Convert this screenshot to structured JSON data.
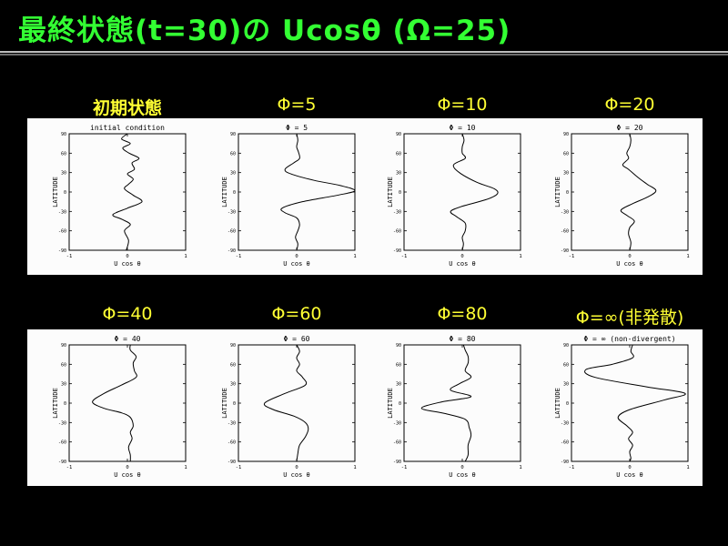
{
  "title": "最終状態(t=30)の Ucosθ (Ω=25)",
  "colors": {
    "background": "#000000",
    "title": "#33ff33",
    "panel_label": "#ffff33",
    "plot_bg": "#fcfcfc"
  },
  "panels": [
    {
      "label": "初期状態",
      "bold": true,
      "plot_title": "initial condition"
    },
    {
      "label": "Φ=5",
      "plot_title": "Φ = 5"
    },
    {
      "label": "Φ=10",
      "plot_title": "Φ = 10"
    },
    {
      "label": "Φ=20",
      "plot_title": "Φ = 20"
    },
    {
      "label": "Φ=40",
      "plot_title": "Φ = 40"
    },
    {
      "label": "Φ=60",
      "plot_title": "Φ = 60"
    },
    {
      "label": "Φ=80",
      "plot_title": "Φ = 80"
    },
    {
      "label": "Φ=∞(非発散)",
      "plot_title": "Φ = ∞ (non-divergent)"
    }
  ],
  "chart_data": [
    {
      "type": "line",
      "title": "initial condition",
      "xlabel": "U cos θ",
      "ylabel": "LATITUDE",
      "xlim": [
        -1,
        1
      ],
      "ylim": [
        -90,
        90
      ],
      "xticks": [
        -1,
        0,
        1
      ],
      "yticks": [
        -90,
        -60,
        -30,
        0,
        30,
        60,
        90
      ],
      "grid": false,
      "series": [
        {
          "x": [
            0,
            -0.1,
            0.05,
            -0.08,
            0.03,
            0.2,
            0.08,
            0.12,
            0,
            0.1,
            0.02,
            -0.05,
            0.1,
            0.25,
            0,
            -0.25,
            -0.1,
            0.05,
            -0.05,
            0.02,
            -0.02
          ],
          "y": [
            90,
            82,
            75,
            68,
            60,
            52,
            45,
            35,
            28,
            20,
            12,
            5,
            -5,
            -15,
            -25,
            -35,
            -42,
            -50,
            -60,
            -75,
            -90
          ]
        }
      ]
    },
    {
      "type": "line",
      "title": "Φ = 5",
      "xlabel": "U cos θ",
      "ylabel": "LATITUDE",
      "xlim": [
        -1,
        1
      ],
      "ylim": [
        -90,
        90
      ],
      "xticks": [
        -1,
        0,
        1
      ],
      "yticks": [
        -90,
        -60,
        -30,
        0,
        30,
        60,
        90
      ],
      "grid": false,
      "series": [
        {
          "x": [
            0,
            0.02,
            0,
            0.03,
            0.05,
            -0.05,
            -0.2,
            -0.1,
            0.3,
            0.75,
            1.0,
            0.7,
            0.1,
            -0.25,
            -0.2,
            0,
            0.05,
            0.02,
            -0.02,
            0.02,
            0
          ],
          "y": [
            90,
            80,
            70,
            62,
            52,
            45,
            35,
            28,
            18,
            10,
            2,
            -5,
            -15,
            -25,
            -32,
            -40,
            -50,
            -60,
            -70,
            -80,
            -90
          ]
        }
      ]
    },
    {
      "type": "line",
      "title": "Φ = 10",
      "xlabel": "U cos θ",
      "ylabel": "LATITUDE",
      "xlim": [
        -1,
        1
      ],
      "ylim": [
        -90,
        90
      ],
      "xticks": [
        -1,
        0,
        1
      ],
      "yticks": [
        -90,
        -60,
        -30,
        0,
        30,
        60,
        90
      ],
      "grid": false,
      "series": [
        {
          "x": [
            0,
            0.03,
            0,
            0,
            0.05,
            -0.15,
            -0.05,
            0.25,
            0.55,
            0.6,
            0.4,
            0,
            -0.2,
            -0.1,
            0.05,
            0.05,
            0,
            0.02,
            0
          ],
          "y": [
            90,
            80,
            70,
            60,
            52,
            42,
            30,
            15,
            5,
            -3,
            -12,
            -22,
            -30,
            -38,
            -48,
            -60,
            -70,
            -80,
            -90
          ]
        }
      ]
    },
    {
      "type": "line",
      "title": "Φ = 20",
      "xlabel": "U cos θ",
      "ylabel": "LATITUDE",
      "xlim": [
        -1,
        1
      ],
      "ylim": [
        -90,
        90
      ],
      "xticks": [
        -1,
        0,
        1
      ],
      "yticks": [
        -90,
        -60,
        -30,
        0,
        30,
        60,
        90
      ],
      "grid": false,
      "series": [
        {
          "x": [
            0,
            0.02,
            0,
            -0.05,
            -0.02,
            -0.12,
            -0.02,
            0.15,
            0.3,
            0.45,
            0.3,
            0.05,
            -0.15,
            -0.05,
            0.08,
            0,
            -0.02,
            0.02,
            0
          ],
          "y": [
            90,
            80,
            70,
            60,
            52,
            42,
            35,
            22,
            12,
            2,
            -8,
            -18,
            -28,
            -36,
            -45,
            -55,
            -65,
            -78,
            -90
          ]
        }
      ]
    },
    {
      "type": "line",
      "title": "Φ = 40",
      "xlabel": "U cos θ",
      "ylabel": "LATITUDE",
      "xlim": [
        -1,
        1
      ],
      "ylim": [
        -90,
        90
      ],
      "xticks": [
        -1,
        0,
        1
      ],
      "yticks": [
        -90,
        -60,
        -30,
        0,
        30,
        60,
        90
      ],
      "grid": false,
      "series": [
        {
          "x": [
            0.05,
            0.05,
            0.15,
            0.1,
            0.12,
            0.15,
            -0.1,
            -0.4,
            -0.6,
            -0.4,
            -0.1,
            0.05,
            0.1,
            0.05,
            0.08,
            0.02,
            0.05,
            0.05
          ],
          "y": [
            90,
            82,
            72,
            62,
            50,
            40,
            28,
            15,
            2,
            -8,
            -15,
            -22,
            -35,
            -45,
            -55,
            -68,
            -80,
            -90
          ]
        }
      ]
    },
    {
      "type": "line",
      "title": "Φ = 60",
      "xlabel": "U cos θ",
      "ylabel": "LATITUDE",
      "xlim": [
        -1,
        1
      ],
      "ylim": [
        -90,
        90
      ],
      "xticks": [
        -1,
        0,
        1
      ],
      "yticks": [
        -90,
        -60,
        -30,
        0,
        30,
        60,
        90
      ],
      "grid": false,
      "series": [
        {
          "x": [
            0,
            0.05,
            0,
            0.05,
            0,
            0.1,
            0.15,
            -0.2,
            -0.55,
            -0.4,
            -0.05,
            0.15,
            0.2,
            0.15,
            0.05,
            0.02,
            0
          ],
          "y": [
            90,
            80,
            70,
            60,
            50,
            40,
            28,
            15,
            0,
            -10,
            -20,
            -30,
            -40,
            -52,
            -65,
            -78,
            -90
          ]
        }
      ]
    },
    {
      "type": "line",
      "title": "Φ = 80",
      "xlabel": "U cos θ",
      "ylabel": "LATITUDE",
      "xlim": [
        -1,
        1
      ],
      "ylim": [
        -90,
        90
      ],
      "xticks": [
        -1,
        0,
        1
      ],
      "yticks": [
        -90,
        -60,
        -30,
        0,
        30,
        60,
        90
      ],
      "grid": false,
      "series": [
        {
          "x": [
            0.02,
            0.05,
            0.1,
            0.1,
            0.05,
            0.15,
            -0.05,
            -0.2,
            0.15,
            -0.35,
            -0.7,
            -0.3,
            0.05,
            0.12,
            0.15,
            0.1,
            0.1,
            0.05
          ],
          "y": [
            90,
            82,
            72,
            62,
            50,
            40,
            30,
            20,
            10,
            2,
            -8,
            -16,
            -25,
            -38,
            -50,
            -65,
            -80,
            -90
          ]
        }
      ]
    },
    {
      "type": "line",
      "title": "Φ = ∞ (non-divergent)",
      "xlabel": "U cos θ",
      "ylabel": "LATITUDE",
      "xlim": [
        -1,
        1
      ],
      "ylim": [
        -90,
        90
      ],
      "xticks": [
        -1,
        0,
        1
      ],
      "yticks": [
        -90,
        -60,
        -30,
        0,
        30,
        60,
        90
      ],
      "grid": false,
      "series": [
        {
          "x": [
            0.05,
            0.02,
            0.05,
            -0.3,
            -0.75,
            -0.6,
            0.3,
            0.95,
            0.6,
            0,
            -0.2,
            -0.05,
            0.05,
            -0.02,
            0.05,
            0,
            0.02,
            0
          ],
          "y": [
            90,
            80,
            70,
            60,
            52,
            40,
            25,
            15,
            5,
            -10,
            -22,
            -35,
            -45,
            -55,
            -65,
            -75,
            -85,
            -90
          ]
        }
      ]
    }
  ]
}
